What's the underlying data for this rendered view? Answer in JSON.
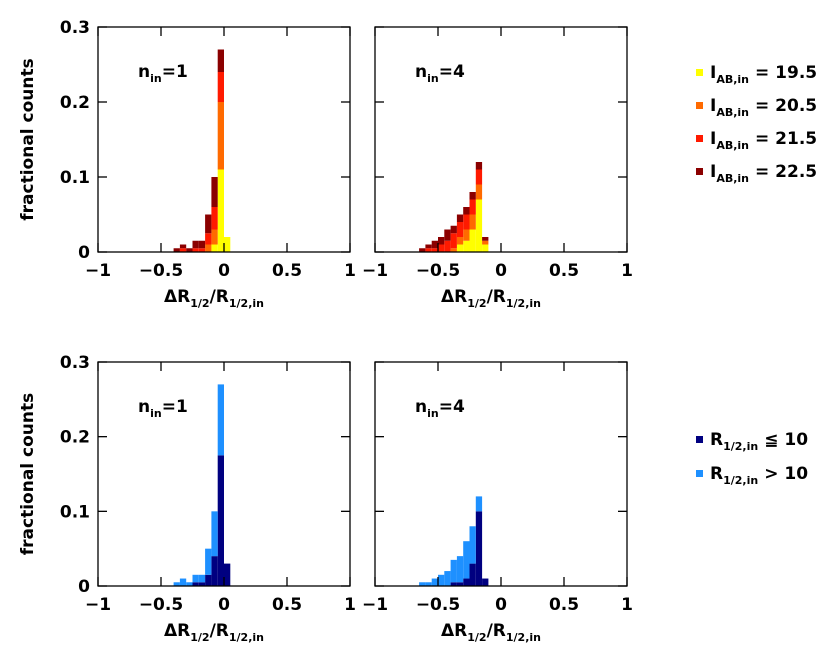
{
  "chart_data": [
    {
      "type": "histogram",
      "annotation": [
        "n",
        "in",
        "=1"
      ],
      "ylabel": "fractional counts",
      "xlabel": [
        "ΔR",
        "1/2",
        "/R",
        "1/2,in"
      ],
      "bins": [
        -0.4,
        -0.35,
        -0.3,
        -0.25,
        -0.2,
        -0.15,
        -0.1,
        -0.05,
        0,
        0.05
      ],
      "series": [
        {
          "color": "#ffff00",
          "values": [
            0,
            0,
            0,
            0,
            0,
            0,
            0.01,
            0.11,
            0.02
          ]
        },
        {
          "color": "#ff6a00",
          "values": [
            0,
            0,
            0,
            0,
            0,
            0.01,
            0.02,
            0.09,
            0
          ]
        },
        {
          "color": "#ff1a00",
          "values": [
            0,
            0.005,
            0,
            0.005,
            0.005,
            0.015,
            0.03,
            0.04,
            0
          ]
        },
        {
          "color": "#8b0000",
          "values": [
            0.005,
            0.005,
            0.005,
            0.01,
            0.01,
            0.025,
            0.04,
            0.03,
            0
          ]
        }
      ],
      "xlim": [
        -1,
        1
      ],
      "ylim": [
        0,
        0.3
      ],
      "xticks": [
        {
          "value": -1,
          "label": "−1"
        },
        {
          "value": -0.5,
          "label": "−0.5"
        },
        0,
        0.5,
        1
      ],
      "yticks": [
        0,
        0.1,
        0.2,
        0.3
      ]
    },
    {
      "type": "histogram",
      "annotation": [
        "n",
        "in",
        "=4"
      ],
      "xlabel": [
        "ΔR",
        "1/2",
        "/R",
        "1/2,in"
      ],
      "bins": [
        -0.65,
        -0.6,
        -0.55,
        -0.5,
        -0.45,
        -0.4,
        -0.35,
        -0.3,
        -0.25,
        -0.2,
        -0.15,
        -0.1
      ],
      "series": [
        {
          "name": "I",
          "name_sub": "AB,in",
          "name_rest": "=  19.5",
          "color": "#ffff00",
          "values": [
            0,
            0,
            0,
            0,
            0,
            0,
            0.01,
            0.015,
            0.03,
            0.07,
            0.01
          ]
        },
        {
          "name": "I",
          "name_sub": "AB,in",
          "name_rest": "=  20.5",
          "color": "#ff6a00",
          "values": [
            0,
            0,
            0,
            0,
            0,
            0.005,
            0.01,
            0.015,
            0.02,
            0.02,
            0.005
          ]
        },
        {
          "name": "I",
          "name_sub": "AB,in",
          "name_rest": "=  21.5",
          "color": "#ff1a00",
          "values": [
            0,
            0.005,
            0.005,
            0.01,
            0.015,
            0.02,
            0.02,
            0.02,
            0.02,
            0.02,
            0
          ]
        },
        {
          "name": "I",
          "name_sub": "AB,in",
          "name_rest": "=  22.5",
          "color": "#8b0000",
          "values": [
            0.005,
            0.005,
            0.01,
            0.01,
            0.015,
            0.01,
            0.01,
            0.01,
            0.01,
            0.01,
            0.005
          ]
        }
      ],
      "xlim": [
        -1,
        1
      ],
      "ylim": [
        0,
        0.3
      ],
      "xticks": [
        {
          "value": -1,
          "label": "−1"
        },
        {
          "value": -0.5,
          "label": "−0.5"
        },
        0,
        0.5,
        1
      ],
      "yticks": [
        0,
        0.1,
        0.2,
        0.3
      ]
    },
    {
      "type": "histogram",
      "annotation": [
        "n",
        "in",
        "=1"
      ],
      "ylabel": "fractional counts",
      "xlabel": [
        "ΔR",
        "1/2",
        "/R",
        "1/2,in"
      ],
      "bins": [
        -0.4,
        -0.35,
        -0.3,
        -0.25,
        -0.2,
        -0.15,
        -0.1,
        -0.05,
        0,
        0.05
      ],
      "series": [
        {
          "color": "#000080",
          "values": [
            0,
            0,
            0,
            0.005,
            0.005,
            0.015,
            0.04,
            0.175,
            0.03
          ]
        },
        {
          "color": "#1e90ff",
          "values": [
            0.005,
            0.01,
            0.005,
            0.01,
            0.01,
            0.035,
            0.06,
            0.095,
            0
          ]
        }
      ],
      "xlim": [
        -1,
        1
      ],
      "ylim": [
        0,
        0.3
      ],
      "xticks": [
        {
          "value": -1,
          "label": "−1"
        },
        {
          "value": -0.5,
          "label": "−0.5"
        },
        0,
        0.5,
        1
      ],
      "yticks": [
        0,
        0.1,
        0.2,
        0.3
      ]
    },
    {
      "type": "histogram",
      "annotation": [
        "n",
        "in",
        "=4"
      ],
      "xlabel": [
        "ΔR",
        "1/2",
        "/R",
        "1/2,in"
      ],
      "bins": [
        -0.65,
        -0.6,
        -0.55,
        -0.5,
        -0.45,
        -0.4,
        -0.35,
        -0.3,
        -0.25,
        -0.2,
        -0.15,
        -0.1
      ],
      "series": [
        {
          "name": "R",
          "name_sub": "1/2,in",
          "name_rest": "≦  10",
          "color": "#000080",
          "values": [
            0,
            0,
            0,
            0,
            0,
            0.005,
            0.005,
            0.01,
            0.03,
            0.1,
            0.01
          ]
        },
        {
          "name": "R",
          "name_sub": "1/2,in",
          "name_rest": ">  10",
          "color": "#1e90ff",
          "values": [
            0.005,
            0.005,
            0.01,
            0.015,
            0.02,
            0.03,
            0.035,
            0.05,
            0.05,
            0.02,
            0
          ]
        }
      ],
      "xlim": [
        -1,
        1
      ],
      "ylim": [
        0,
        0.3
      ],
      "xticks": [
        {
          "value": -1,
          "label": "−1"
        },
        {
          "value": -0.5,
          "label": "−0.5"
        },
        0,
        0.5,
        1
      ],
      "yticks": [
        0,
        0.1,
        0.2,
        0.3
      ]
    }
  ]
}
